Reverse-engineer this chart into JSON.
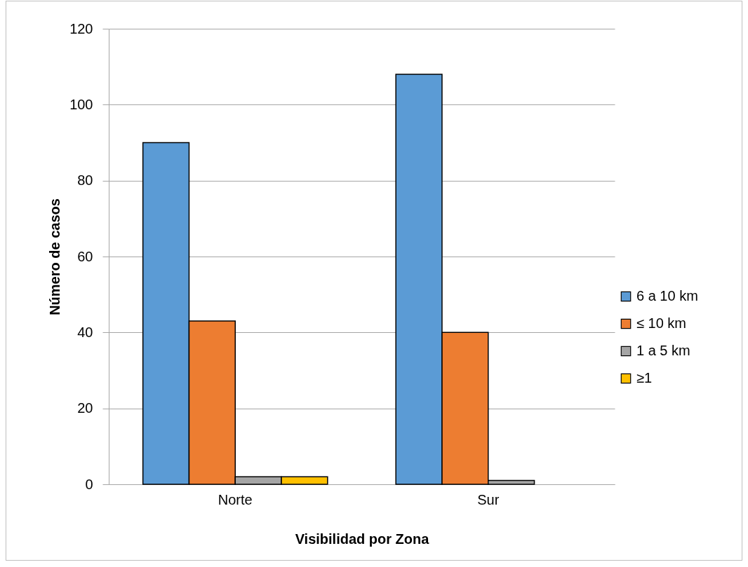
{
  "chart_data": {
    "type": "bar",
    "xlabel": "Visibilidad por Zona",
    "ylabel": "Número de casos",
    "categories": [
      "Norte",
      "Sur"
    ],
    "series": [
      {
        "name": "6 a 10 km",
        "color": "#5b9bd5",
        "values": [
          90,
          108
        ]
      },
      {
        "name": "≤ 10 km",
        "color": "#ed7d31",
        "values": [
          43,
          40
        ]
      },
      {
        "name": "1 a 5 km",
        "color": "#a5a5a5",
        "values": [
          2,
          1
        ]
      },
      {
        "name": "≥1",
        "color": "#ffc000",
        "values": [
          2,
          null
        ]
      }
    ],
    "ylim": [
      0,
      120
    ],
    "yticks": [
      0,
      20,
      40,
      60,
      80,
      100,
      120
    ],
    "grid": "y",
    "legend": "right"
  }
}
